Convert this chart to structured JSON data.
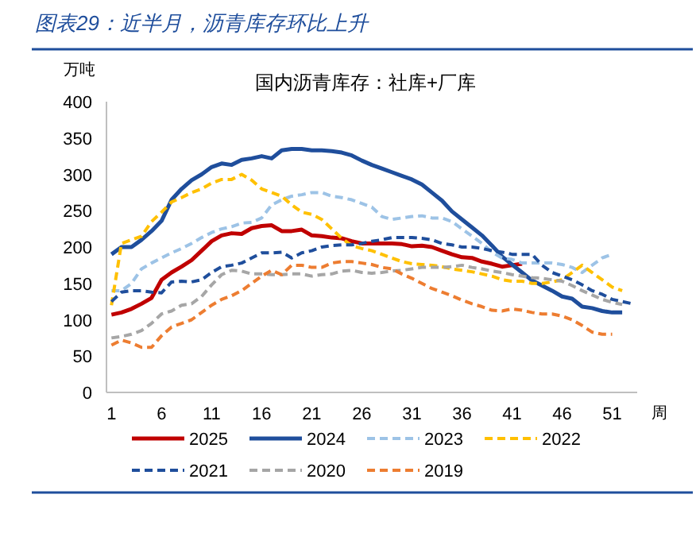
{
  "chart_data": {
    "type": "line",
    "title": "图表29：近半月，沥青库存环比上升",
    "subtitle": "国内沥青库存：社库+厂库",
    "ylabel": "万吨",
    "xlabel": "周",
    "x": [
      1,
      2,
      3,
      4,
      5,
      6,
      7,
      8,
      9,
      10,
      11,
      12,
      13,
      14,
      15,
      16,
      17,
      18,
      19,
      20,
      21,
      22,
      23,
      24,
      25,
      26,
      27,
      28,
      29,
      30,
      31,
      32,
      33,
      34,
      35,
      36,
      37,
      38,
      39,
      40,
      41,
      42,
      43,
      44,
      45,
      46,
      47,
      48,
      49,
      50,
      51,
      52,
      53
    ],
    "xlim": [
      0.5,
      53.5
    ],
    "xticks": [
      1,
      6,
      11,
      16,
      21,
      26,
      31,
      36,
      41,
      46,
      51
    ],
    "ylim": [
      0,
      400
    ],
    "yticks": [
      0,
      50,
      100,
      150,
      200,
      250,
      300,
      350,
      400
    ],
    "grid": false,
    "legend": "bottom",
    "marker": "none",
    "series": [
      {
        "name": "2025",
        "color": "#c00000",
        "line_style": "solid",
        "values": [
          107,
          110,
          115,
          122,
          130,
          155,
          165,
          173,
          182,
          195,
          208,
          216,
          219,
          218,
          226,
          229,
          230,
          222,
          222,
          224,
          216,
          215,
          213,
          212,
          208,
          205,
          205,
          205,
          205,
          204,
          201,
          202,
          200,
          195,
          190,
          186,
          185,
          180,
          177,
          173,
          175,
          177,
          null,
          null,
          null,
          null,
          null,
          null,
          null,
          null,
          null,
          null,
          null
        ]
      },
      {
        "name": "2024",
        "color": "#1f4e9c",
        "line_style": "solid",
        "values": [
          190,
          200,
          200,
          210,
          222,
          236,
          265,
          280,
          292,
          300,
          310,
          315,
          313,
          320,
          322,
          325,
          322,
          333,
          335,
          335,
          333,
          333,
          332,
          330,
          326,
          319,
          313,
          308,
          303,
          298,
          293,
          286,
          275,
          264,
          249,
          238,
          227,
          216,
          202,
          187,
          176,
          165,
          154,
          147,
          140,
          132,
          129,
          118,
          116,
          112,
          110,
          110,
          null
        ]
      },
      {
        "name": "2023",
        "color": "#9dc3e6",
        "line_style": "dashed",
        "values": [
          140,
          140,
          150,
          170,
          178,
          185,
          192,
          198,
          205,
          213,
          220,
          225,
          228,
          233,
          234,
          240,
          258,
          265,
          270,
          272,
          275,
          275,
          270,
          268,
          265,
          260,
          255,
          242,
          238,
          240,
          242,
          243,
          240,
          240,
          235,
          225,
          215,
          205,
          193,
          185,
          183,
          178,
          178,
          178,
          178,
          176,
          172,
          165,
          175,
          185,
          190,
          null,
          null
        ]
      },
      {
        "name": "2022",
        "color": "#ffc000",
        "line_style": "dashed",
        "values": [
          120,
          205,
          210,
          215,
          235,
          248,
          262,
          268,
          275,
          280,
          288,
          293,
          293,
          300,
          292,
          280,
          275,
          270,
          258,
          248,
          245,
          238,
          225,
          212,
          202,
          198,
          195,
          190,
          185,
          180,
          177,
          176,
          175,
          173,
          170,
          168,
          166,
          163,
          160,
          155,
          153,
          153,
          150,
          150,
          152,
          155,
          165,
          175,
          165,
          155,
          145,
          140,
          null
        ]
      },
      {
        "name": "2021",
        "color": "#1f4e9c",
        "line_style": "dashed",
        "values": [
          125,
          138,
          140,
          140,
          138,
          137,
          152,
          153,
          152,
          155,
          165,
          173,
          175,
          178,
          185,
          192,
          192,
          193,
          185,
          192,
          195,
          200,
          202,
          203,
          203,
          205,
          208,
          210,
          213,
          213,
          213,
          212,
          210,
          205,
          203,
          200,
          200,
          198,
          195,
          193,
          190,
          190,
          190,
          175,
          165,
          160,
          155,
          148,
          140,
          135,
          128,
          125,
          122
        ]
      },
      {
        "name": "2020",
        "color": "#a6a6a6",
        "line_style": "dashed",
        "values": [
          75,
          77,
          80,
          85,
          95,
          108,
          112,
          120,
          122,
          132,
          148,
          162,
          168,
          167,
          163,
          163,
          162,
          162,
          163,
          163,
          160,
          162,
          163,
          167,
          168,
          165,
          164,
          165,
          167,
          168,
          170,
          172,
          172,
          172,
          173,
          175,
          172,
          170,
          167,
          165,
          162,
          160,
          158,
          157,
          155,
          153,
          147,
          140,
          134,
          128,
          124,
          121,
          null
        ]
      },
      {
        "name": "2019",
        "color": "#ed7d31",
        "line_style": "dashed",
        "values": [
          65,
          72,
          68,
          62,
          62,
          78,
          90,
          95,
          100,
          110,
          120,
          128,
          133,
          140,
          150,
          160,
          168,
          162,
          175,
          175,
          172,
          172,
          178,
          180,
          180,
          178,
          176,
          172,
          170,
          163,
          157,
          150,
          143,
          138,
          133,
          127,
          122,
          118,
          113,
          112,
          115,
          113,
          110,
          108,
          108,
          105,
          100,
          92,
          83,
          80,
          80,
          null,
          null
        ]
      }
    ]
  }
}
